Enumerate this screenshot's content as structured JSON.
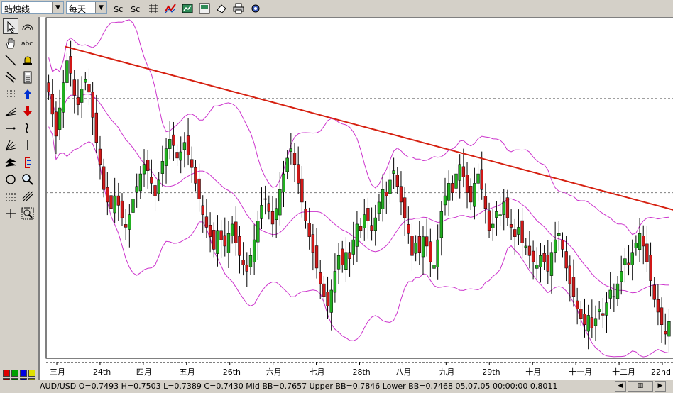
{
  "toolbar": {
    "chart_type": "蜡烛线",
    "period": "每天"
  },
  "status": {
    "line": "AUD/USD O=0.7493 H=0.7503 L=0.7389 C=0.7430  Mid BB=0.7657 Upper BB=0.7846 Lower BB=0.7468  05.07.05 00:00:00 0.8011"
  },
  "colors": {
    "up_candle": "#22b020",
    "down_candle": "#d01818",
    "bollinger": "#cc33cc",
    "trendline": "#d62010",
    "grid": "#808080"
  },
  "xaxis": {
    "labels": [
      "三月",
      "24th",
      "四月",
      "五月",
      "26th",
      "六月",
      "七月",
      "28th",
      "八月",
      "九月",
      "29th",
      "十月",
      "十一月",
      "十二月",
      "22nd"
    ]
  },
  "palette_colors": [
    "#e00000",
    "#00a000",
    "#0000e0",
    "#e0e000",
    "#800000",
    "#006000",
    "#000080",
    "#808000"
  ],
  "chart_data": {
    "type": "candlestick",
    "indicators": [
      "bollinger-bands",
      "trendline"
    ],
    "closes": [
      0.812,
      0.805,
      0.798,
      0.807,
      0.815,
      0.822,
      0.818,
      0.811,
      0.808,
      0.813,
      0.816,
      0.812,
      0.804,
      0.796,
      0.789,
      0.781,
      0.777,
      0.775,
      0.779,
      0.776,
      0.772,
      0.769,
      0.773,
      0.778,
      0.782,
      0.786,
      0.789,
      0.787,
      0.783,
      0.779,
      0.784,
      0.79,
      0.794,
      0.797,
      0.795,
      0.791,
      0.793,
      0.796,
      0.792,
      0.788,
      0.783,
      0.778,
      0.773,
      0.769,
      0.766,
      0.762,
      0.768,
      0.765,
      0.763,
      0.767,
      0.77,
      0.764,
      0.76,
      0.757,
      0.755,
      0.76,
      0.765,
      0.771,
      0.776,
      0.778,
      0.774,
      0.77,
      0.775,
      0.781,
      0.786,
      0.791,
      0.794,
      0.789,
      0.783,
      0.777,
      0.771,
      0.766,
      0.761,
      0.756,
      0.751,
      0.747,
      0.744,
      0.749,
      0.755,
      0.76,
      0.757,
      0.761,
      0.759,
      0.765,
      0.77,
      0.768,
      0.773,
      0.771,
      0.768,
      0.772,
      0.777,
      0.781,
      0.779,
      0.784,
      0.787,
      0.782,
      0.777,
      0.772,
      0.767,
      0.76,
      0.764,
      0.761,
      0.766,
      0.763,
      0.758,
      0.757,
      0.765,
      0.774,
      0.779,
      0.783,
      0.78,
      0.786,
      0.789,
      0.785,
      0.78,
      0.777,
      0.783,
      0.786,
      0.781,
      0.775,
      0.768,
      0.77,
      0.774,
      0.773,
      0.777,
      0.772,
      0.769,
      0.766,
      0.769,
      0.764,
      0.763,
      0.76,
      0.758,
      0.757,
      0.76,
      0.758,
      0.755,
      0.761,
      0.765,
      0.767,
      0.762,
      0.756,
      0.751,
      0.747,
      0.743,
      0.74,
      0.738,
      0.741,
      0.737,
      0.74,
      0.743,
      0.741,
      0.745,
      0.749,
      0.747,
      0.751,
      0.755,
      0.759,
      0.757,
      0.761,
      0.764,
      0.767,
      0.763,
      0.758,
      0.752,
      0.746,
      0.742,
      0.738,
      0.735,
      0.739
    ],
    "trendline": {
      "from": [
        0.8265,
        "三月"
      ],
      "to": [
        0.7745,
        "22nd"
      ]
    }
  }
}
